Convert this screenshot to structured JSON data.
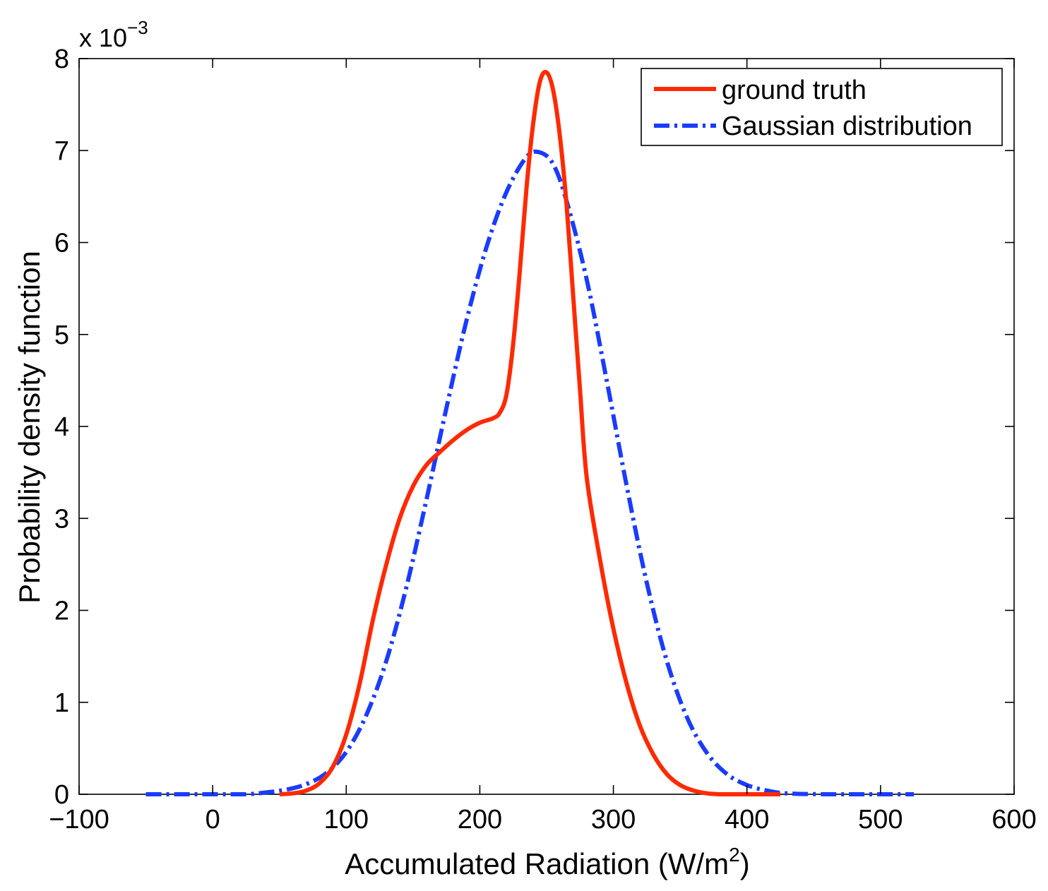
{
  "chart_data": {
    "type": "line",
    "title": "",
    "xlabel": "Accumulated Radiation (W/m",
    "xlabel_sup": "2",
    "xlabel_end": ")",
    "ylabel": "Probability density function",
    "y_exponent_prefix": "x 10",
    "y_exponent_power": "−3",
    "xlim": [
      -100,
      600
    ],
    "ylim": [
      0,
      8
    ],
    "xticks": [
      -100,
      0,
      100,
      200,
      300,
      400,
      500,
      600
    ],
    "xtick_labels": [
      "−100",
      "0",
      "100",
      "200",
      "300",
      "400",
      "500",
      "600"
    ],
    "yticks": [
      0,
      1,
      2,
      3,
      4,
      5,
      6,
      7,
      8
    ],
    "ytick_labels": [
      "0",
      "1",
      "2",
      "3",
      "4",
      "5",
      "6",
      "7",
      "8"
    ],
    "grid": false,
    "legend_position": "top-right",
    "series": [
      {
        "name": "ground truth",
        "color": "#ff2a00",
        "style": "solid",
        "x": [
          50,
          60,
          70,
          80,
          90,
          100,
          110,
          120,
          130,
          140,
          150,
          160,
          170,
          180,
          190,
          200,
          210,
          215,
          220,
          225,
          230,
          235,
          240,
          245,
          250,
          255,
          260,
          265,
          270,
          275,
          280,
          290,
          300,
          310,
          320,
          330,
          340,
          350,
          360,
          370,
          380,
          390,
          400,
          410,
          425
        ],
        "y": [
          0.0,
          0.01,
          0.04,
          0.12,
          0.3,
          0.65,
          1.2,
          1.9,
          2.5,
          3.0,
          3.35,
          3.58,
          3.72,
          3.85,
          3.96,
          4.04,
          4.09,
          4.15,
          4.35,
          4.9,
          5.7,
          6.6,
          7.3,
          7.75,
          7.85,
          7.65,
          7.15,
          6.4,
          5.4,
          4.4,
          3.45,
          2.55,
          1.8,
          1.2,
          0.74,
          0.43,
          0.22,
          0.1,
          0.04,
          0.01,
          0.0,
          0.0,
          0.0,
          0.0,
          0.0
        ]
      },
      {
        "name": "Gaussian distribution",
        "color": "#1a3cff",
        "style": "dashdot",
        "x": [
          -50,
          -25,
          0,
          25,
          40,
          55,
          70,
          85,
          100,
          115,
          130,
          145,
          160,
          175,
          190,
          205,
          220,
          235,
          245,
          255,
          265,
          280,
          295,
          310,
          325,
          340,
          355,
          370,
          385,
          400,
          415,
          430,
          460,
          490,
          525
        ],
        "y": [
          0.0,
          0.0,
          0.0,
          0.0,
          0.02,
          0.05,
          0.11,
          0.23,
          0.46,
          0.86,
          1.45,
          2.25,
          3.2,
          4.2,
          5.15,
          5.95,
          6.55,
          6.93,
          6.98,
          6.85,
          6.45,
          5.6,
          4.5,
          3.35,
          2.3,
          1.45,
          0.84,
          0.45,
          0.22,
          0.1,
          0.04,
          0.01,
          0.0,
          0.0,
          0.0
        ]
      }
    ]
  }
}
